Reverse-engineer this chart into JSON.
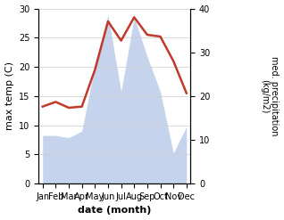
{
  "months": [
    "Jan",
    "Feb",
    "Mar",
    "Apr",
    "May",
    "Jun",
    "Jul",
    "Aug",
    "Sep",
    "Oct",
    "Nov",
    "Dec"
  ],
  "month_positions": [
    0,
    1,
    2,
    3,
    4,
    5,
    6,
    7,
    8,
    9,
    10,
    11
  ],
  "temperature": [
    13.2,
    14.0,
    13.0,
    13.2,
    19.5,
    27.8,
    24.5,
    28.5,
    25.5,
    25.2,
    21.0,
    15.5
  ],
  "precipitation": [
    11,
    11,
    10.5,
    12,
    27,
    38.5,
    21,
    38,
    29,
    21,
    7,
    13
  ],
  "temp_color": "#c0392b",
  "precip_fill_color": "#c5d3ed",
  "temp_ylim": [
    0,
    30
  ],
  "precip_ylim": [
    0,
    40
  ],
  "temp_yticks": [
    0,
    5,
    10,
    15,
    20,
    25,
    30
  ],
  "precip_yticks": [
    0,
    10,
    20,
    30,
    40
  ],
  "xlabel": "date (month)",
  "ylabel_left": "max temp (C)",
  "ylabel_right": "med. precipitation\n(kg/m2)",
  "background_color": "#ffffff",
  "grid_color": "#cccccc",
  "figsize": [
    3.18,
    2.47
  ],
  "dpi": 100
}
